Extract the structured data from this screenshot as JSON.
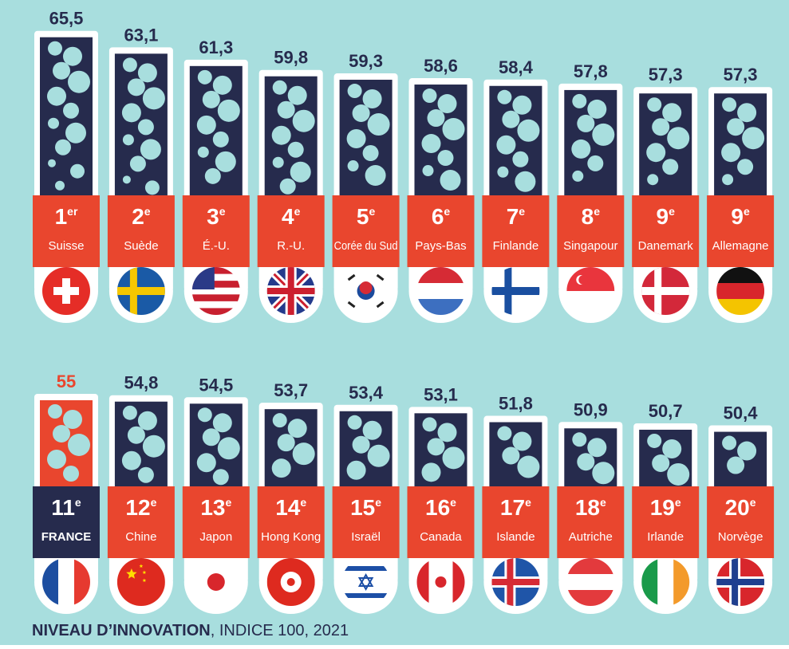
{
  "chart_data": {
    "type": "tube",
    "title": "NIVEAU D’INNOVATION",
    "subtitle": ", INDICE 100, 2021",
    "categories": [
      "Suisse",
      "Suède",
      "É.-U.",
      "R.-U.",
      "Corée du Sud",
      "Pays-Bas",
      "Finlande",
      "Singapour",
      "Danemark",
      "Allemagne",
      "FRANCE",
      "Chine",
      "Japon",
      "Hong Kong",
      "Israël",
      "Canada",
      "Islande",
      "Autriche",
      "Irlande",
      "Norvège"
    ],
    "ranks": [
      {
        "number": "1",
        "suffix": "er"
      },
      {
        "number": "2",
        "suffix": "e"
      },
      {
        "number": "3",
        "suffix": "e"
      },
      {
        "number": "4",
        "suffix": "e"
      },
      {
        "number": "5",
        "suffix": "e"
      },
      {
        "number": "6",
        "suffix": "e"
      },
      {
        "number": "7",
        "suffix": "e"
      },
      {
        "number": "8",
        "suffix": "e"
      },
      {
        "number": "9",
        "suffix": "e"
      },
      {
        "number": "9",
        "suffix": "e"
      },
      {
        "number": "11",
        "suffix": "e"
      },
      {
        "number": "12",
        "suffix": "e"
      },
      {
        "number": "13",
        "suffix": "e"
      },
      {
        "number": "14",
        "suffix": "e"
      },
      {
        "number": "15",
        "suffix": "e"
      },
      {
        "number": "16",
        "suffix": "e"
      },
      {
        "number": "17",
        "suffix": "e"
      },
      {
        "number": "18",
        "suffix": "e"
      },
      {
        "number": "19",
        "suffix": "e"
      },
      {
        "number": "20",
        "suffix": "e"
      }
    ],
    "series": [
      {
        "color": "#262b4d",
        "values": [
          65.5,
          63.1,
          61.3,
          59.8,
          59.3,
          58.6,
          58.4,
          57.8,
          57.3,
          57.3,
          55,
          54.8,
          54.5,
          53.7,
          53.4,
          53.1,
          51.8,
          50.9,
          50.7,
          50.4
        ],
        "value_labels": [
          "65,5",
          "63,1",
          "61,3",
          "59,8",
          "59,3",
          "58,6",
          "58,4",
          "57,8",
          "57,3",
          "57,3",
          "55",
          "54,8",
          "54,5",
          "53,7",
          "53,4",
          "53,1",
          "51,8",
          "50,9",
          "50,7",
          "50,4"
        ]
      }
    ],
    "label_color": "#e9462e",
    "highlight": "FRANCE",
    "highlight_color": "#e9462e",
    "ylim": [
      25,
      70
    ]
  }
}
